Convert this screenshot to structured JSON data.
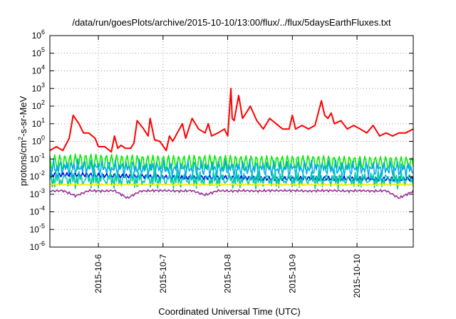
{
  "chart_data": {
    "type": "line",
    "title": "/data/run/goesPlots/archive/2015-10-10/13:00/flux/../flux/5daysEarthFluxes.txt",
    "xlabel": "Coordinated Universal Time (UTC)",
    "ylabel": "protons/cm²-s-sr-MeV",
    "yscale": "log",
    "ylim": [
      1e-06,
      1000000.0
    ],
    "ytick_exponents": [
      -6,
      -5,
      -4,
      -3,
      -2,
      -1,
      0,
      1,
      2,
      3,
      4,
      5,
      6
    ],
    "x_range_days": [
      0,
      5.62
    ],
    "x_ticks": [
      {
        "label": "2015-10-6",
        "day": 0.75
      },
      {
        "label": "2015-10-7",
        "day": 1.75
      },
      {
        "label": "2015-10-8",
        "day": 2.75
      },
      {
        "label": "2015-10-9",
        "day": 3.75
      },
      {
        "label": "2015-10-10",
        "day": 4.75
      }
    ],
    "grid": true,
    "series": [
      {
        "color": "#ff0000",
        "x": [
          0.0,
          0.1,
          0.2,
          0.3,
          0.36,
          0.45,
          0.52,
          0.6,
          0.7,
          0.75,
          0.85,
          0.95,
          1.0,
          1.05,
          1.1,
          1.17,
          1.25,
          1.3,
          1.35,
          1.45,
          1.52,
          1.55,
          1.62,
          1.7,
          1.8,
          1.85,
          1.9,
          1.97,
          2.05,
          2.1,
          2.2,
          2.3,
          2.4,
          2.45,
          2.5,
          2.6,
          2.7,
          2.75,
          2.8,
          2.82,
          2.85,
          2.92,
          2.98,
          3.05,
          3.1,
          3.2,
          3.3,
          3.4,
          3.5,
          3.6,
          3.7,
          3.75,
          3.8,
          3.9,
          4.0,
          4.1,
          4.2,
          4.25,
          4.3,
          4.35,
          4.4,
          4.5,
          4.6,
          4.7,
          4.8,
          4.9,
          5.0,
          5.1,
          5.2,
          5.3,
          5.4,
          5.5,
          5.62
        ],
        "values": [
          0.3,
          0.5,
          0.3,
          1.5,
          30,
          10,
          3,
          3,
          1.5,
          0.5,
          0.5,
          0.25,
          2,
          0.4,
          0.6,
          0.4,
          0.4,
          0.8,
          15,
          5,
          2,
          20,
          1.2,
          1.0,
          0.3,
          2,
          1.0,
          3,
          10,
          1.5,
          20,
          5,
          3,
          10,
          2,
          3,
          5,
          2,
          1000,
          20,
          15,
          400,
          20,
          50,
          100,
          15,
          5,
          20,
          10,
          5,
          5,
          30,
          5,
          8,
          5,
          8,
          200,
          30,
          20,
          40,
          10,
          15,
          5,
          8,
          5,
          3,
          8,
          2,
          3,
          2,
          3,
          3,
          5
        ]
      },
      {
        "color": "#00ee00",
        "x": [
          0.0,
          0.5,
          1.0,
          1.5,
          2.0,
          2.5,
          3.0,
          3.5,
          4.0,
          4.5,
          5.0,
          5.62
        ],
        "values": [
          0.06,
          0.07,
          0.065,
          0.06,
          0.06,
          0.065,
          0.06,
          0.06,
          0.065,
          0.06,
          0.06,
          0.06
        ],
        "noise": 0.45,
        "freq": 13.0
      },
      {
        "color": "#00aaee",
        "x": [
          0.0,
          0.5,
          1.0,
          1.5,
          2.0,
          2.5,
          3.0,
          3.5,
          4.0,
          4.5,
          5.0,
          5.62
        ],
        "values": [
          0.03,
          0.035,
          0.03,
          0.03,
          0.028,
          0.03,
          0.03,
          0.028,
          0.03,
          0.03,
          0.028,
          0.028
        ],
        "noise": 0.5,
        "freq": 11.0
      },
      {
        "color": "#0000ff",
        "x": [
          0.0,
          0.5,
          1.0,
          1.5,
          2.0,
          2.5,
          3.0,
          3.5,
          4.0,
          4.5,
          5.0,
          5.62
        ],
        "values": [
          0.012,
          0.013,
          0.012,
          0.012,
          0.011,
          0.012,
          0.012,
          0.011,
          0.012,
          0.012,
          0.011,
          0.011
        ],
        "noise": 0.3,
        "freq": 17.0
      },
      {
        "color": "#00ccaa",
        "x": [
          0.0,
          0.5,
          1.0,
          1.5,
          2.0,
          2.5,
          3.0,
          3.5,
          4.0,
          4.5,
          5.0,
          5.62
        ],
        "values": [
          0.007,
          0.007,
          0.007,
          0.007,
          0.007,
          0.007,
          0.007,
          0.007,
          0.007,
          0.007,
          0.007,
          0.007
        ],
        "noise": 0.55,
        "freq": 9.0
      },
      {
        "color": "#eeee00",
        "x": [
          0.0,
          0.5,
          1.0,
          1.5,
          2.0,
          2.5,
          3.0,
          3.5,
          4.0,
          4.5,
          5.0,
          5.62
        ],
        "values": [
          0.0035,
          0.0035,
          0.0035,
          0.0035,
          0.0035,
          0.0035,
          0.0035,
          0.0035,
          0.0035,
          0.0035,
          0.0035,
          0.0035
        ],
        "noise": 0.08,
        "freq": 23.0
      },
      {
        "color": "#993399",
        "x": [
          0.0,
          0.2,
          0.4,
          0.6,
          0.8,
          1.0,
          1.2,
          1.4,
          1.6,
          1.8,
          2.0,
          2.2,
          2.4,
          2.6,
          2.8,
          3.0,
          3.2,
          3.4,
          3.6,
          3.8,
          4.0,
          4.2,
          4.4,
          4.6,
          4.8,
          5.0,
          5.2,
          5.4,
          5.62
        ],
        "values": [
          0.0015,
          0.0016,
          0.0008,
          0.0016,
          0.0015,
          0.0016,
          0.0006,
          0.0015,
          0.0016,
          0.0016,
          0.0015,
          0.0016,
          0.0009,
          0.0016,
          0.0015,
          0.0016,
          0.0015,
          0.0016,
          0.0016,
          0.0016,
          0.0015,
          0.0016,
          0.0016,
          0.0015,
          0.0016,
          0.0015,
          0.0016,
          0.0006,
          0.0015
        ],
        "noise": 0.08,
        "freq": 29.0
      }
    ]
  }
}
